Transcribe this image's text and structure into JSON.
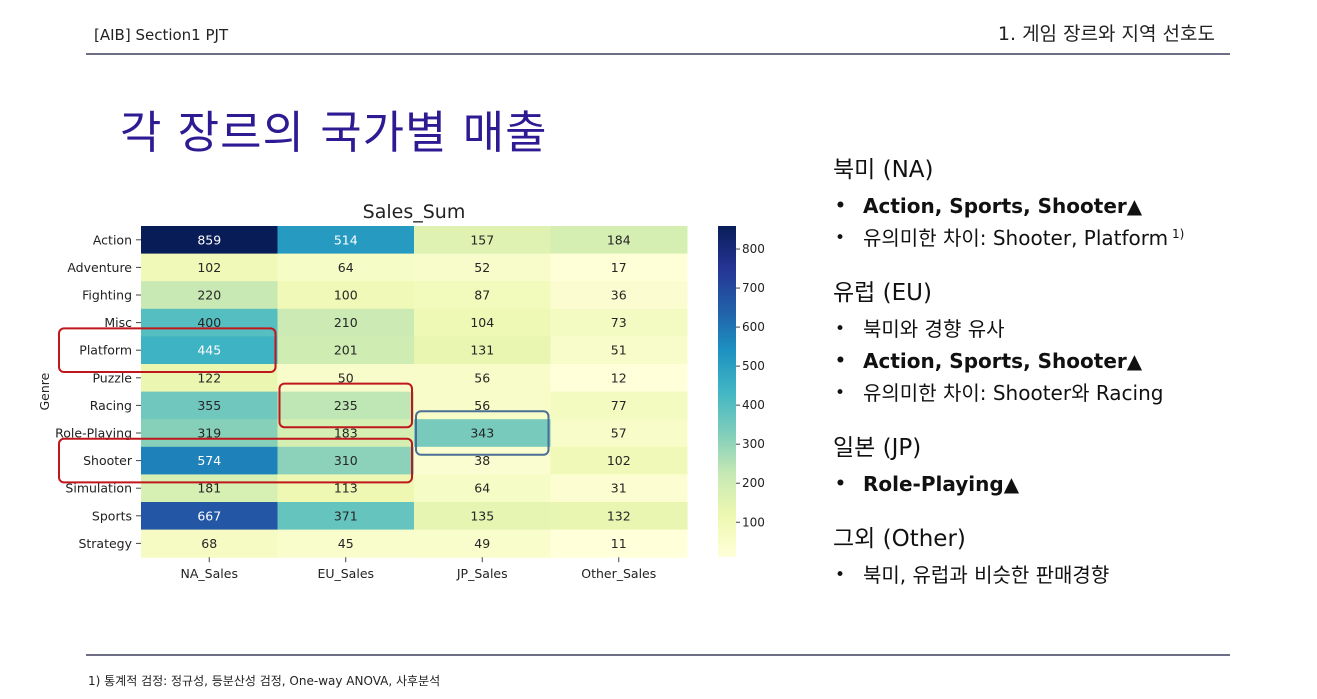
{
  "header": {
    "left": "[AIB] Section1 PJT",
    "right": "1. 게임 장르와 지역 선호도"
  },
  "title": "각 장르의 국가별 매출",
  "footnote": "1) 통계적 검정: 정규성, 등분산성 검정, One-way ANOVA, 사후분석",
  "chart_data": {
    "type": "heatmap",
    "title": "Sales_Sum",
    "xlabel": "",
    "ylabel": "Genre",
    "columns": [
      "NA_Sales",
      "EU_Sales",
      "JP_Sales",
      "Other_Sales"
    ],
    "rows": [
      "Action",
      "Adventure",
      "Fighting",
      "Misc",
      "Platform",
      "Puzzle",
      "Racing",
      "Role-Playing",
      "Shooter",
      "Simulation",
      "Sports",
      "Strategy"
    ],
    "values": [
      [
        859,
        514,
        157,
        184
      ],
      [
        102,
        64,
        52,
        17
      ],
      [
        220,
        100,
        87,
        36
      ],
      [
        400,
        210,
        104,
        73
      ],
      [
        445,
        201,
        131,
        51
      ],
      [
        122,
        50,
        56,
        12
      ],
      [
        355,
        235,
        56,
        77
      ],
      [
        319,
        183,
        343,
        57
      ],
      [
        574,
        310,
        38,
        102
      ],
      [
        181,
        113,
        64,
        31
      ],
      [
        667,
        371,
        135,
        132
      ],
      [
        68,
        45,
        49,
        11
      ]
    ],
    "colorbar": {
      "colormap": "YlGnBu",
      "range": [
        11,
        859
      ],
      "ticks": [
        100,
        200,
        300,
        400,
        500,
        600,
        700,
        800
      ]
    },
    "highlights": [
      {
        "color": "#c0171c",
        "rows": [
          "Platform"
        ],
        "columns": [
          "NA_Sales"
        ],
        "row_label": true
      },
      {
        "color": "#c0171c",
        "rows": [
          "Racing"
        ],
        "columns": [
          "EU_Sales"
        ],
        "row_label": false
      },
      {
        "color": "#4a6f96",
        "rows": [
          "Role-Playing"
        ],
        "columns": [
          "JP_Sales"
        ],
        "row_label": false
      },
      {
        "color": "#c0171c",
        "rows": [
          "Shooter"
        ],
        "columns": [
          "NA_Sales",
          "EU_Sales"
        ],
        "row_label": true
      }
    ]
  },
  "notes": {
    "sections": [
      {
        "heading": "북미 (NA)",
        "items": [
          {
            "text": "Action, Sports, Shooter▲",
            "bold": true
          },
          {
            "text": "유의미한 차이: Shooter, Platform",
            "sup": "1)",
            "bold": false
          }
        ]
      },
      {
        "heading": "유럽 (EU)",
        "items": [
          {
            "text": "북미와 경향 유사",
            "bold": false
          },
          {
            "text": "Action, Sports, Shooter▲",
            "bold": true
          },
          {
            "text": "유의미한 차이: Shooter와 Racing",
            "bold": false
          }
        ]
      },
      {
        "heading": "일본 (JP)",
        "items": [
          {
            "text": "Role-Playing▲",
            "bold": true
          }
        ]
      },
      {
        "heading": "그외 (Other)",
        "items": [
          {
            "text": "북미, 유럽과 비슷한 판매경향",
            "bold": false
          }
        ]
      }
    ]
  }
}
